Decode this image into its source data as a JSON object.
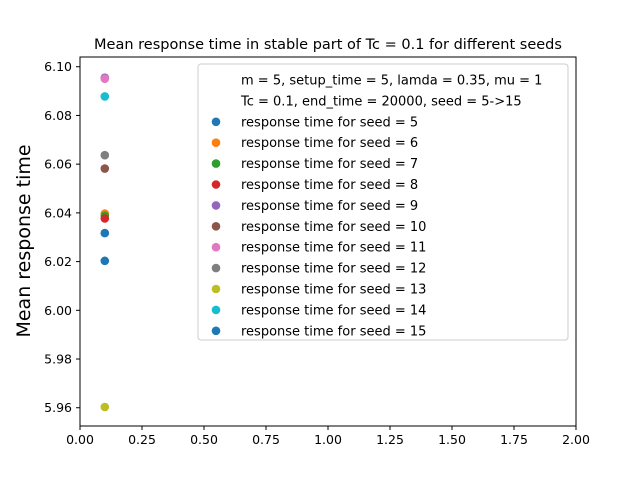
{
  "chart_data": {
    "type": "scatter",
    "title": "Mean response time in stable part of Tc = 0.1 for different seeds",
    "xlabel": "",
    "ylabel": "Mean response time",
    "xlim": [
      0.0,
      2.0
    ],
    "ylim": [
      5.9525,
      6.104
    ],
    "x_ticks": [
      "0.00",
      "0.25",
      "0.50",
      "0.75",
      "1.00",
      "1.25",
      "1.50",
      "1.75",
      "2.00"
    ],
    "y_ticks": [
      "5.96",
      "5.98",
      "6.00",
      "6.02",
      "6.04",
      "6.06",
      "6.08",
      "6.10"
    ],
    "grid": false,
    "legend_position": "top-right",
    "legend_header": [
      "m = 5, setup_time = 5, lamda = 0.35, mu = 1",
      "Tc = 0.1, end_time = 20000, seed = 5->15"
    ],
    "series": [
      {
        "name": "response time for seed = 5",
        "color": "#1f77b4",
        "x": [
          0.1
        ],
        "y": [
          6.0317
        ]
      },
      {
        "name": "response time for seed = 6",
        "color": "#ff7f0e",
        "x": [
          0.1
        ],
        "y": [
          6.0397
        ]
      },
      {
        "name": "response time for seed = 7",
        "color": "#2ca02c",
        "x": [
          0.1
        ],
        "y": [
          6.0388
        ]
      },
      {
        "name": "response time for seed = 8",
        "color": "#d62728",
        "x": [
          0.1
        ],
        "y": [
          6.0377
        ]
      },
      {
        "name": "response time for seed = 9",
        "color": "#9467bd",
        "x": [
          0.1
        ],
        "y": [
          6.0955
        ]
      },
      {
        "name": "response time for seed = 10",
        "color": "#8c564b",
        "x": [
          0.1
        ],
        "y": [
          6.0582
        ]
      },
      {
        "name": "response time for seed = 11",
        "color": "#e377c2",
        "x": [
          0.1
        ],
        "y": [
          6.0951
        ]
      },
      {
        "name": "response time for seed = 12",
        "color": "#7f7f7f",
        "x": [
          0.1
        ],
        "y": [
          6.0637
        ]
      },
      {
        "name": "response time for seed = 13",
        "color": "#bcbd22",
        "x": [
          0.1
        ],
        "y": [
          5.9603
        ]
      },
      {
        "name": "response time for seed = 14",
        "color": "#17becf",
        "x": [
          0.1
        ],
        "y": [
          6.0878
        ]
      },
      {
        "name": "response time for seed = 15",
        "color": "#1f77b4",
        "x": [
          0.1
        ],
        "y": [
          6.0203
        ]
      }
    ]
  }
}
